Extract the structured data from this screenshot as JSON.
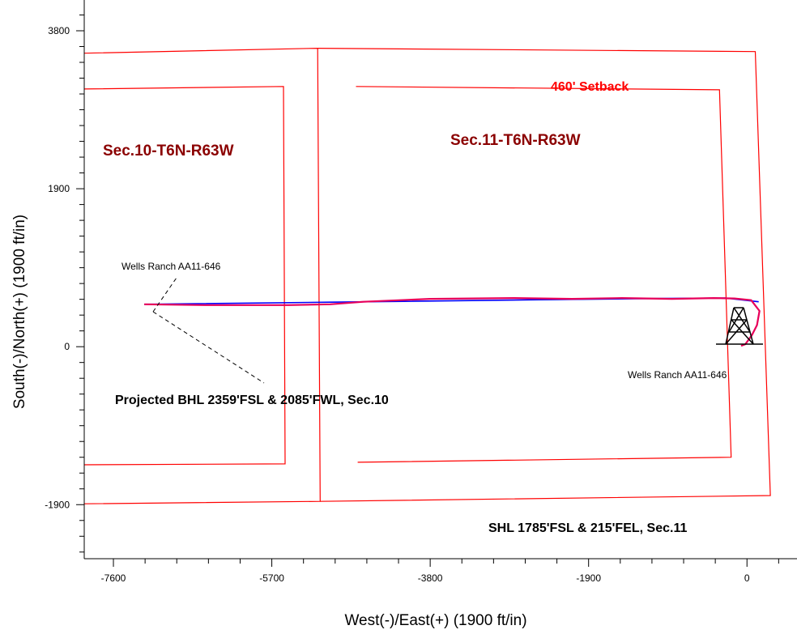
{
  "chart_data": {
    "type": "line",
    "xlabel": "West(-)/East(+) (1900 ft/in)",
    "ylabel": "South(-)/North(+) (1900 ft/in)",
    "xlim": [
      -7950,
      600
    ],
    "ylim": [
      -2550,
      4170
    ],
    "x_ticks": [
      -7600,
      -5700,
      -3800,
      -1900,
      0
    ],
    "y_ticks": [
      -1900,
      0,
      1900,
      3800
    ],
    "x_tick_labels": [
      "-7600",
      "-5700",
      "-3800",
      "-1900",
      "0"
    ],
    "y_tick_labels": [
      "-1900",
      "0",
      "1900",
      "3800"
    ],
    "grid": false,
    "section_lines": [
      {
        "name": "Sec.10 boundary",
        "color": "#ff0000",
        "points": [
          [
            -7950,
            3530
          ],
          [
            -5150,
            3590
          ],
          [
            -5120,
            -1860
          ],
          [
            -7950,
            -1890
          ]
        ]
      },
      {
        "name": "Sec.11 boundary",
        "color": "#ff0000",
        "points": [
          [
            -5150,
            3590
          ],
          [
            100,
            3550
          ],
          [
            280,
            -1790
          ],
          [
            -5120,
            -1860
          ]
        ]
      },
      {
        "name": "Sec.10 setback",
        "color": "#ff0000",
        "points": [
          [
            -7950,
            3100
          ],
          [
            -5560,
            3130
          ],
          [
            -5540,
            -1410
          ],
          [
            -7950,
            -1420
          ]
        ]
      },
      {
        "name": "Sec.11 setback",
        "color": "#ff0000",
        "points": [
          [
            -4690,
            3130
          ],
          [
            -330,
            3090
          ],
          [
            -190,
            -1330
          ],
          [
            -4670,
            -1390
          ]
        ]
      }
    ],
    "series": [
      {
        "color": "#0000ff",
        "x": [
          -7230,
          -5000,
          -2500,
          -1000,
          -260,
          140
        ],
        "y": [
          510,
          535,
          565,
          580,
          585,
          540
        ]
      },
      {
        "color": "#ff0000",
        "x": [
          -7230,
          -6500,
          -5500,
          -5000,
          -4600,
          -3800,
          -2800,
          -2100,
          -1500,
          -900,
          -400,
          -150,
          50,
          150,
          120,
          60,
          -20,
          -70
        ],
        "y": [
          510,
          500,
          500,
          510,
          540,
          575,
          585,
          575,
          585,
          575,
          585,
          580,
          560,
          430,
          260,
          140,
          30,
          10
        ]
      }
    ],
    "annotations": {
      "setback": "460' Setback",
      "sec10": "Sec.10-T6N-R63W",
      "sec11": "Sec.11-T6N-R63W",
      "bhl_well": "Wells Ranch AA11-646",
      "bhl_note": "Projected BHL 2359'FSL & 2085'FWL, Sec.10",
      "shl_well": "Wells Ranch AA11-646",
      "shl_note": "SHL 1785'FSL & 215'FEL, Sec.11"
    },
    "colors": {
      "section": "#ff0000",
      "section_label": "#8b0000",
      "plan": "#0000ff",
      "actual": "#e8005a",
      "rig": "#000000"
    },
    "icons": [
      "drilling-rig-icon"
    ]
  }
}
